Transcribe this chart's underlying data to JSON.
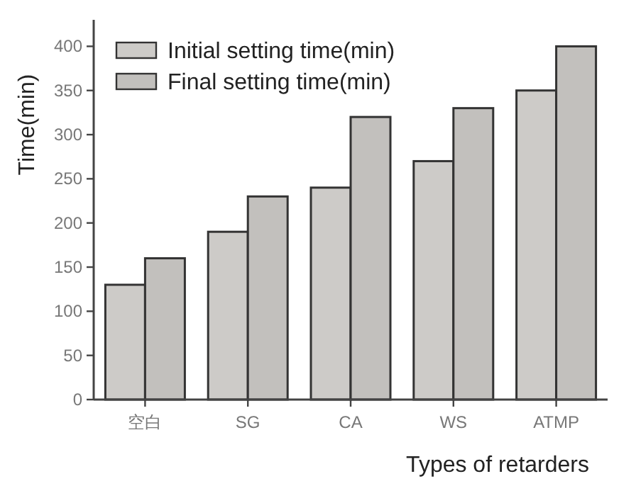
{
  "chart_data": {
    "type": "bar",
    "xlabel": "Types of retarders",
    "ylabel": "Time(min)",
    "categories": [
      "空白",
      "SG",
      "CA",
      "WS",
      "ATMP"
    ],
    "series": [
      {
        "name": "Initial setting time(min)",
        "color": "#cdcbc8",
        "values": [
          130,
          190,
          240,
          270,
          350
        ]
      },
      {
        "name": "Final setting time(min)",
        "color": "#c2c0bd",
        "values": [
          160,
          230,
          320,
          330,
          400
        ]
      }
    ],
    "ylim": [
      0,
      430
    ],
    "yticks": [
      0,
      50,
      100,
      150,
      200,
      250,
      300,
      350,
      400
    ],
    "grid": false,
    "legend": "top left"
  }
}
